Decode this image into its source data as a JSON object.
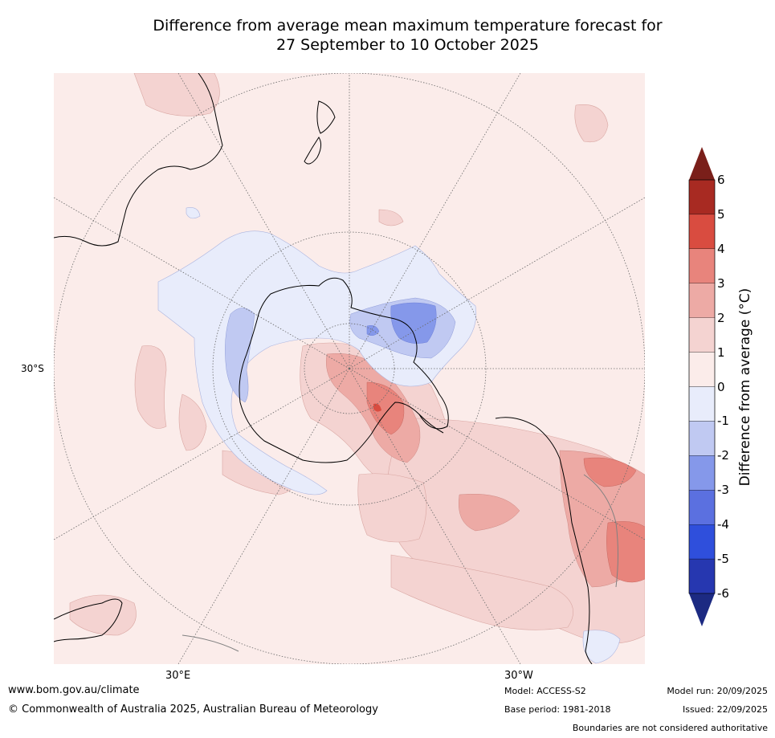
{
  "title": {
    "line1": "Difference from average mean maximum temperature forecast for",
    "line2": "27 September to 10 October 2025"
  },
  "map": {
    "projection": "south-polar-stereographic",
    "lat_label": "30°S",
    "lon_labels": [
      "30°E",
      "30°W"
    ]
  },
  "colorbar": {
    "label": "Difference from average (°C)",
    "ticks": [
      "6",
      "5",
      "4",
      "3",
      "2",
      "1",
      "0",
      "-1",
      "-2",
      "-3",
      "-4",
      "-5",
      "-6"
    ],
    "colors": {
      "above6": "#7a1f1a",
      "5_6": "#a82a22",
      "4_5": "#d94c40",
      "3_4": "#e8847c",
      "2_3": "#edaaa5",
      "1_2": "#f4d3d1",
      "0_1": "#fbecea",
      "m1_0": "#e8ecfb",
      "m2_m1": "#c0c9f2",
      "m3_m2": "#8598ea",
      "m4_m3": "#5b70e0",
      "m5_m4": "#2f4fdc",
      "m6_m5": "#2637b0",
      "below_m6": "#1c2a82"
    }
  },
  "footer": {
    "website": "www.bom.gov.au/climate",
    "copyright": "© Commonwealth of Australia 2025, Australian Bureau of Meteorology",
    "model": "Model: ACCESS-S2",
    "base_period": "Base period: 1981-2018",
    "model_run": "Model run: 20/09/2025",
    "issued": "Issued: 22/09/2025",
    "disclaimer": "Boundaries are not considered authoritative"
  }
}
